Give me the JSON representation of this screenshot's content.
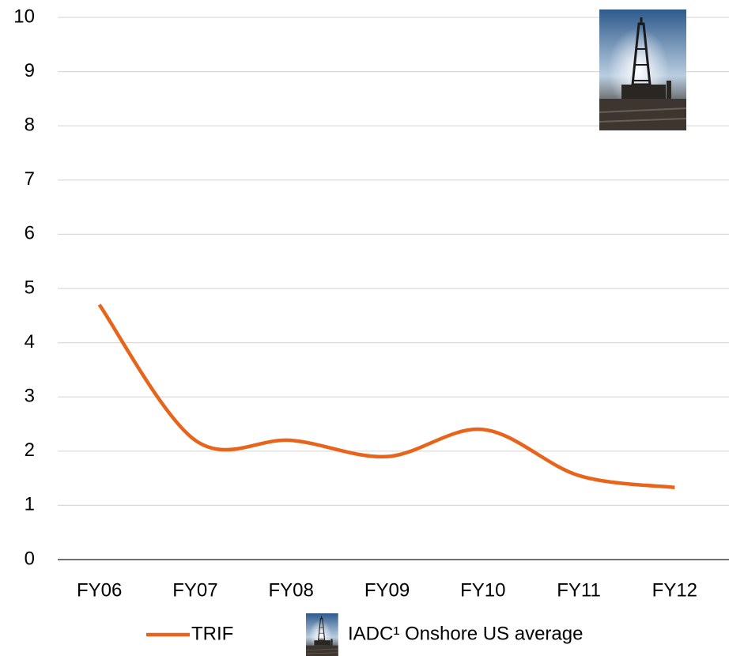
{
  "chart_data": {
    "type": "line",
    "categories": [
      "FY06",
      "FY07",
      "FY08",
      "FY09",
      "FY10",
      "FY11",
      "FY12"
    ],
    "series": [
      {
        "name": "TRIF",
        "color": "#e8641b",
        "values": [
          4.7,
          2.2,
          2.2,
          1.9,
          2.4,
          1.55,
          1.33
        ]
      },
      {
        "name": "IADC¹ Onshore US average"
      }
    ],
    "ylim": [
      0,
      10
    ],
    "yticks": [
      0,
      1,
      2,
      3,
      4,
      5,
      6,
      7,
      8,
      9,
      10
    ],
    "grid": true,
    "smooth": true,
    "legend": "bottom"
  }
}
